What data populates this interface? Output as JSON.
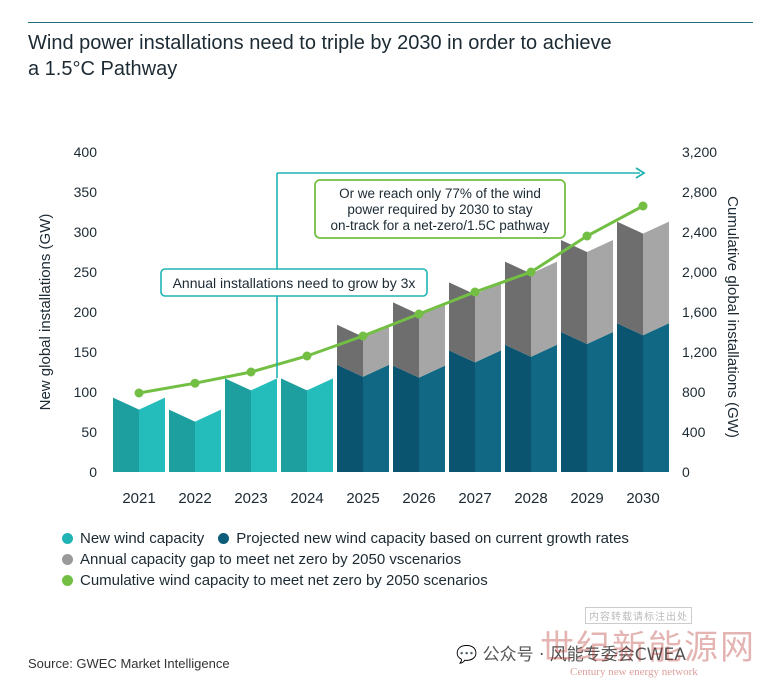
{
  "header": {
    "title_line1": "Wind power installations need to triple by 2030 in order to achieve",
    "title_line2": "a 1.5°C Pathway"
  },
  "chart_data": {
    "type": "bar",
    "stacked": true,
    "categories": [
      "2021",
      "2022",
      "2023",
      "2024",
      "2025",
      "2026",
      "2027",
      "2028",
      "2029",
      "2030"
    ],
    "ylabel_left": "New global installations (GW)",
    "ylabel_right": "Cumulative global installations (GW)",
    "yticks_left": [
      "0",
      "50",
      "100",
      "150",
      "200",
      "250",
      "300",
      "350",
      "400"
    ],
    "yticks_right": [
      "0",
      "400",
      "800",
      "1,200",
      "1,600",
      "2,000",
      "2,400",
      "2,800",
      "3,200"
    ],
    "ylim_left": [
      0,
      400
    ],
    "ylim_right": [
      0,
      3200
    ],
    "series": [
      {
        "name": "New wind capacity",
        "color": "#21b3b3",
        "axis": "left",
        "values": [
          93,
          78,
          117,
          117,
          null,
          null,
          null,
          null,
          null,
          null
        ]
      },
      {
        "name": "Projected new wind capacity based on current growth rates",
        "color": "#0d5c79",
        "axis": "left",
        "values": [
          null,
          null,
          null,
          null,
          134,
          133,
          152,
          159,
          175,
          186
        ]
      },
      {
        "name": "Annual capacity gap to meet net zero by 2050 vscenarios",
        "color": "#9a9a9a",
        "axis": "left",
        "values": [
          null,
          null,
          null,
          null,
          50,
          79,
          85,
          104,
          115,
          127
        ]
      },
      {
        "name": "Cumulative wind capacity to meet net zero by 2050 scenarios",
        "color": "#73bf44",
        "axis": "right",
        "type": "line",
        "values": [
          null,
          null,
          null,
          null,
          null,
          null,
          null,
          null,
          null,
          null
        ],
        "points": [
          {
            "x": "2021",
            "y": 790
          },
          {
            "x": "2022",
            "y": 888
          },
          {
            "x": "2023",
            "y": 1000
          },
          {
            "x": "2024",
            "y": 1160
          },
          {
            "x": "2025",
            "y": 1360
          },
          {
            "x": "2026",
            "y": 1580
          },
          {
            "x": "2027",
            "y": 1800
          },
          {
            "x": "2028",
            "y": 2000
          },
          {
            "x": "2029",
            "y": 2360
          },
          {
            "x": "2030",
            "y": 2660
          }
        ]
      }
    ],
    "annotations": [
      {
        "id": "annual",
        "text": "Annual installations need to grow by 3x",
        "color": "#21b3b3"
      },
      {
        "id": "reach",
        "lines": [
          "Or we reach only 77% of the wind",
          "power required by 2030 to stay",
          "on-track for a net-zero/1.5C pathway"
        ],
        "color": "#73bf44"
      }
    ]
  },
  "source": "Source: GWEC Market Intelligence",
  "watermark": {
    "line1": "公众号 · 风能专委会CWEA",
    "line2": "世纪新能源网",
    "line3": "Century new energy network",
    "small": "内容转载请标注出处",
    "color": "#b0271f"
  }
}
